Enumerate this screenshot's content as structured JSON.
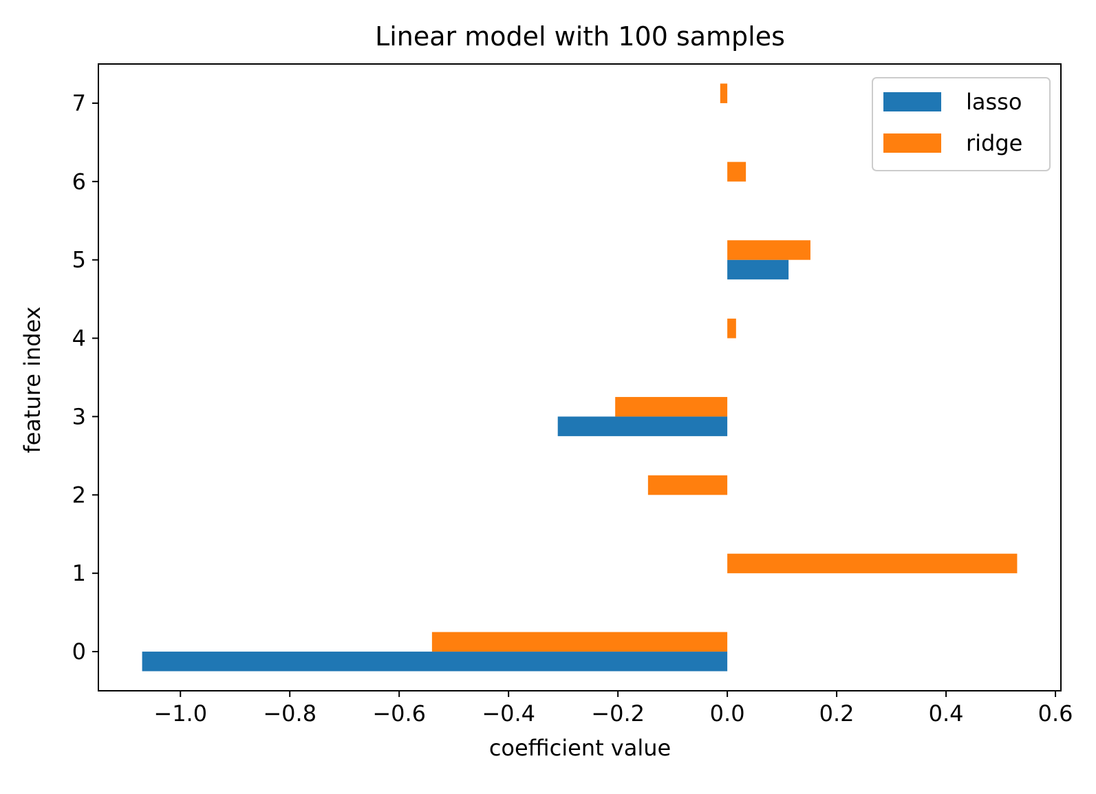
{
  "chart_data": {
    "type": "bar",
    "orientation": "horizontal",
    "title": "Linear model with 100 samples",
    "xlabel": "coefficient value",
    "ylabel": "feature index",
    "xlim": [
      -1.15,
      0.61
    ],
    "ylim": [
      -0.5,
      7.5
    ],
    "xticks": [
      -1.0,
      -0.8,
      -0.6,
      -0.4,
      -0.2,
      0.0,
      0.2,
      0.4,
      0.6
    ],
    "xtick_labels": [
      "−1.0",
      "−0.8",
      "−0.6",
      "−0.4",
      "−0.2",
      "0.0",
      "0.2",
      "0.4",
      "0.6"
    ],
    "yticks": [
      0,
      1,
      2,
      3,
      4,
      5,
      6,
      7
    ],
    "ytick_labels": [
      "0",
      "1",
      "2",
      "3",
      "4",
      "5",
      "6",
      "7"
    ],
    "categories": [
      0,
      1,
      2,
      3,
      4,
      5,
      6,
      7
    ],
    "grid": false,
    "legend_position": "top-right",
    "series": [
      {
        "name": "lasso",
        "color": "#1f77b4",
        "values": [
          -1.07,
          0.0,
          0.0,
          -0.31,
          0.0,
          0.112,
          0.0,
          0.0
        ]
      },
      {
        "name": "ridge",
        "color": "#ff7f0e",
        "values": [
          -0.54,
          0.53,
          -0.145,
          -0.205,
          0.016,
          0.152,
          0.034,
          -0.013
        ]
      }
    ]
  }
}
